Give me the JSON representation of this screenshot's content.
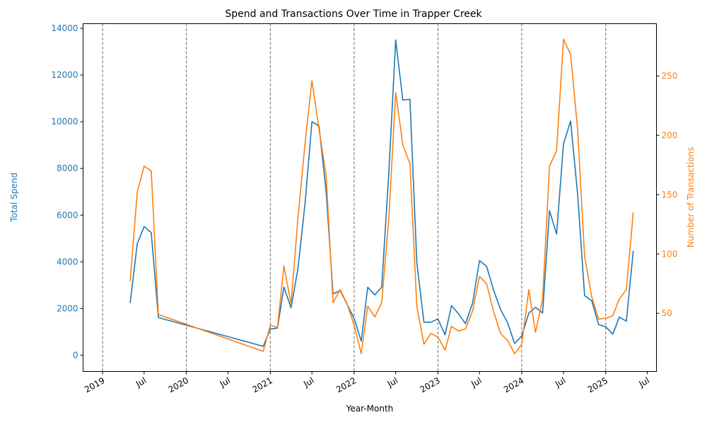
{
  "chart_data": {
    "type": "line",
    "title": "Spend and Transactions Over Time in Trapper Creek",
    "xlabel": "Year-Month",
    "ylabel_left": "Total Spend",
    "ylabel_right": "Number of Transactions",
    "xlim": [
      "2018-10-08",
      "2025-08-10"
    ],
    "ylim_left": [
      -700,
      14200
    ],
    "ylim_right": [
      1,
      294
    ],
    "yticks_left": [
      0,
      2000,
      4000,
      6000,
      8000,
      10000,
      12000,
      14000
    ],
    "yticks_right": [
      50,
      100,
      150,
      200,
      250
    ],
    "xticks": [
      {
        "date": "2019-01-01",
        "label": "2019",
        "major": true
      },
      {
        "date": "2019-07-01",
        "label": "Jul",
        "major": false
      },
      {
        "date": "2020-01-01",
        "label": "2020",
        "major": true
      },
      {
        "date": "2020-07-01",
        "label": "Jul",
        "major": false
      },
      {
        "date": "2021-01-01",
        "label": "2021",
        "major": true
      },
      {
        "date": "2021-07-01",
        "label": "Jul",
        "major": false
      },
      {
        "date": "2022-01-01",
        "label": "2022",
        "major": true
      },
      {
        "date": "2022-07-01",
        "label": "Jul",
        "major": false
      },
      {
        "date": "2023-01-01",
        "label": "2023",
        "major": true
      },
      {
        "date": "2023-07-01",
        "label": "Jul",
        "major": false
      },
      {
        "date": "2024-01-01",
        "label": "2024",
        "major": true
      },
      {
        "date": "2024-07-01",
        "label": "Jul",
        "major": false
      },
      {
        "date": "2025-01-01",
        "label": "2025",
        "major": true
      },
      {
        "date": "2025-07-01",
        "label": "Jul",
        "major": false
      }
    ],
    "year_lines": [
      "2019-01-01",
      "2020-01-01",
      "2021-01-01",
      "2022-01-01",
      "2023-01-01",
      "2024-01-01",
      "2025-01-01"
    ],
    "colors": {
      "spend": "#1f77b4",
      "transactions": "#ff7f0e",
      "year_line": "#808080"
    },
    "legend": "none",
    "grid": false,
    "x": [
      "2019-05-01",
      "2019-06-01",
      "2019-07-01",
      "2019-08-01",
      "2019-09-01",
      "2020-12-01",
      "2021-01-01",
      "2021-02-01",
      "2021-03-01",
      "2021-04-01",
      "2021-05-01",
      "2021-06-01",
      "2021-07-01",
      "2021-08-01",
      "2021-09-01",
      "2021-10-01",
      "2021-11-01",
      "2021-12-01",
      "2022-01-01",
      "2022-02-01",
      "2022-03-01",
      "2022-04-01",
      "2022-05-01",
      "2022-06-01",
      "2022-07-01",
      "2022-08-01",
      "2022-09-01",
      "2022-10-01",
      "2022-11-01",
      "2022-12-01",
      "2023-01-01",
      "2023-02-01",
      "2023-03-01",
      "2023-04-01",
      "2023-05-01",
      "2023-06-01",
      "2023-07-01",
      "2023-08-01",
      "2023-09-01",
      "2023-10-01",
      "2023-11-01",
      "2023-12-01",
      "2024-01-01",
      "2024-02-01",
      "2024-03-01",
      "2024-04-01",
      "2024-05-01",
      "2024-06-01",
      "2024-07-01",
      "2024-08-01",
      "2024-09-01",
      "2024-10-01",
      "2024-11-01",
      "2024-12-01",
      "2025-01-01",
      "2025-02-01",
      "2025-03-01",
      "2025-04-01",
      "2025-05-01"
    ],
    "series": [
      {
        "name": "Total Spend",
        "axis": "left",
        "values": [
          2230,
          4770,
          5510,
          5250,
          1610,
          380,
          1120,
          1160,
          2920,
          2030,
          3700,
          6500,
          10000,
          9820,
          7000,
          2620,
          2770,
          2180,
          1570,
          600,
          2910,
          2580,
          2920,
          7800,
          13500,
          10930,
          10960,
          3970,
          1410,
          1410,
          1550,
          870,
          2120,
          1770,
          1350,
          2230,
          4050,
          3810,
          2770,
          1960,
          1380,
          500,
          820,
          1800,
          2050,
          1810,
          6190,
          5190,
          9050,
          10030,
          6850,
          2550,
          2330,
          1310,
          1220,
          900,
          1630,
          1460,
          4470
        ]
      },
      {
        "name": "Number of Transactions",
        "axis": "right",
        "values": [
          77,
          152,
          174,
          170,
          49,
          18,
          40,
          38,
          90,
          58,
          130,
          193,
          246,
          205,
          166,
          59,
          70,
          58,
          40,
          16,
          56,
          47,
          59,
          130,
          236,
          192,
          176,
          56,
          24,
          33,
          30,
          19,
          39,
          35,
          37,
          52,
          81,
          75,
          51,
          33,
          27,
          16,
          24,
          70,
          34,
          62,
          174,
          187,
          281,
          268,
          204,
          98,
          64,
          45,
          46,
          48,
          62,
          70,
          135
        ]
      }
    ]
  }
}
